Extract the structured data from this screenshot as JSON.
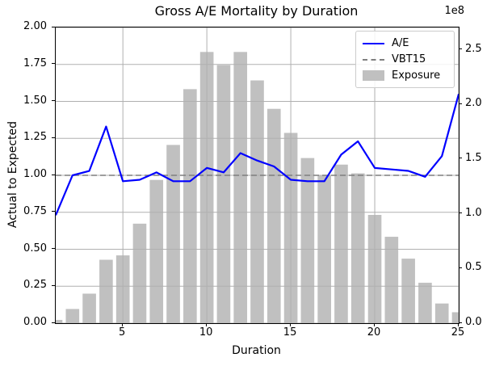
{
  "figure": {
    "title": "Gross A/E Mortality by Duration",
    "xlabel": "Duration",
    "ylabel_left": "Actual to Expected",
    "offset_label": "1e8"
  },
  "legend": {
    "position": "upper right",
    "items": [
      {
        "label": "A/E",
        "type": "line",
        "color": "#0000ff"
      },
      {
        "label": "VBT15",
        "type": "dashed",
        "color": "#7f7f7f"
      },
      {
        "label": "Exposure",
        "type": "patch",
        "color": "#c0c0c0"
      }
    ]
  },
  "chart_data": {
    "type": "line+bar",
    "title": "Gross A/E Mortality by Duration",
    "xlabel": "Duration",
    "ylabel_left": "Actual to Expected",
    "ylabel_right_offset": "1e8",
    "x": [
      1,
      2,
      3,
      4,
      5,
      6,
      7,
      8,
      9,
      10,
      11,
      12,
      13,
      14,
      15,
      16,
      17,
      18,
      19,
      20,
      21,
      22,
      23,
      24,
      25
    ],
    "series": [
      {
        "name": "A/E",
        "type": "line",
        "axis": "left",
        "color": "#0000ff",
        "values": [
          0.73,
          1.0,
          1.03,
          1.33,
          0.96,
          0.97,
          1.02,
          0.96,
          0.96,
          1.05,
          1.02,
          1.15,
          1.1,
          1.06,
          0.97,
          0.96,
          0.96,
          1.14,
          1.23,
          1.05,
          1.04,
          1.03,
          0.99,
          1.13,
          1.55
        ]
      },
      {
        "name": "VBT15",
        "type": "hline-dashed",
        "axis": "left",
        "color": "#7f7f7f",
        "value": 1.0
      },
      {
        "name": "Exposure",
        "type": "bar",
        "axis": "right",
        "color": "#c0c0c0",
        "unit": "1e8",
        "bar_width_x_units": 0.8,
        "values": [
          0.03,
          0.13,
          0.27,
          0.58,
          0.62,
          0.91,
          1.31,
          1.63,
          2.14,
          2.48,
          2.36,
          2.48,
          2.22,
          1.96,
          1.74,
          1.51,
          1.35,
          1.45,
          1.37,
          0.99,
          0.79,
          0.59,
          0.37,
          0.18,
          0.1
        ]
      }
    ],
    "axes": {
      "x": {
        "min": 1,
        "max": 25,
        "ticks": [
          "5",
          "10",
          "15",
          "20",
          "25"
        ]
      },
      "y_left": {
        "min": 0,
        "max": 2.0,
        "ticks": [
          "0.00",
          "0.25",
          "0.50",
          "0.75",
          "1.00",
          "1.25",
          "1.50",
          "1.75",
          "2.00"
        ]
      },
      "y_right": {
        "min": 0,
        "max": 2.704,
        "ticks": [
          "0.0",
          "0.5",
          "1.0",
          "1.5",
          "2.0",
          "2.5"
        ],
        "offset_text": "1e8"
      }
    },
    "grid": true,
    "grid_color": "#b0b0b0",
    "legend_position": "upper right"
  }
}
